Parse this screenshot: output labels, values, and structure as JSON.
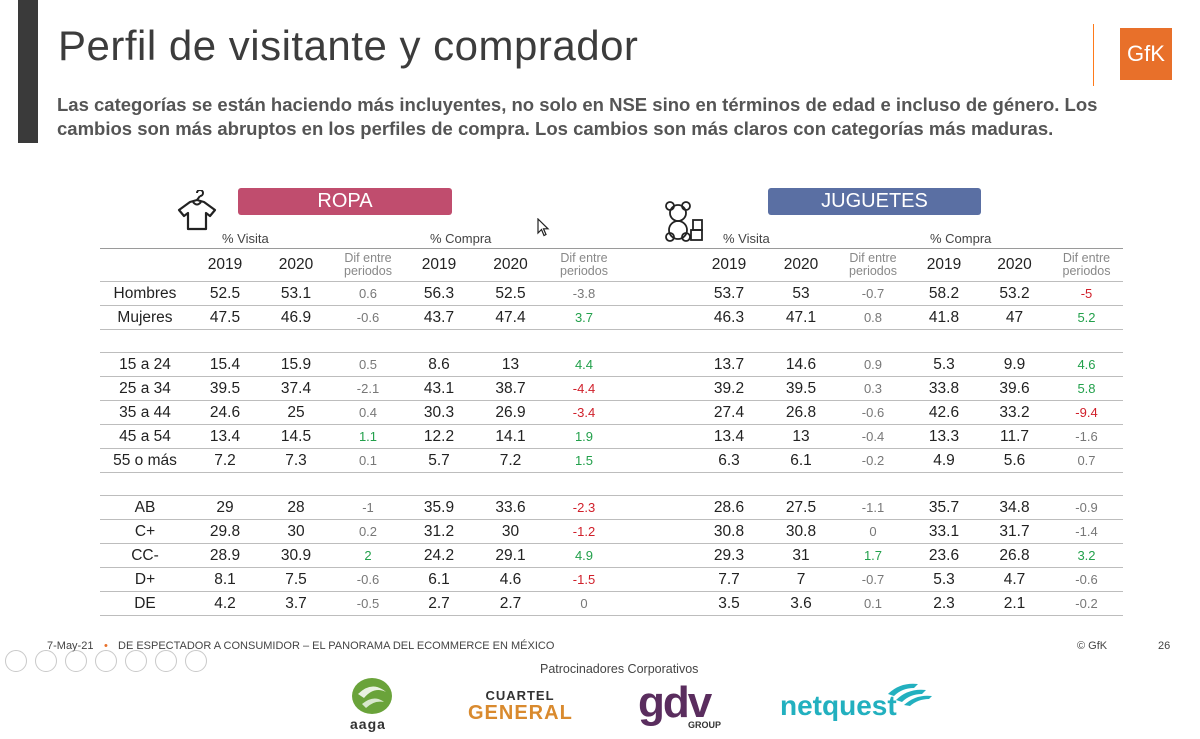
{
  "slide": {
    "title": "Perfil de visitante y comprador",
    "subtitle": "Las categorías se están haciendo más incluyentes, no solo en NSE sino en términos de edad e incluso de género. Los cambios son más abruptos en los perfiles de compra.  Los cambios son más claros con categorías más maduras.",
    "logo_text": "GfK"
  },
  "ropa": {
    "label": "ROPA",
    "icon": "shirt-hanger-icon",
    "color": "#c04d6e",
    "visita_label": "% Visita",
    "compra_label": "% Compra"
  },
  "juguetes": {
    "label": "JUGUETES",
    "icon": "teddy-bear-blocks-icon",
    "color": "#5a6fa3",
    "visita_label": "% Visita",
    "compra_label": "% Compra"
  },
  "headers": {
    "y2019": "2019",
    "y2020": "2020",
    "dif_line1": "Dif entre",
    "dif_line2": "periodos"
  },
  "colors": {
    "positive": "#22a04b",
    "negative": "#d01f2a"
  },
  "rows": [
    {
      "label": "Hombres",
      "rv19": "52.5",
      "rv20": "53.1",
      "rvd": "0.6",
      "rc19": "56.3",
      "rc20": "52.5",
      "rcd": "-3.8",
      "rcdc": "",
      "jv19": "53.7",
      "jv20": "53",
      "jvd": "-0.7",
      "jc19": "58.2",
      "jc20": "53.2",
      "jcd": "-5",
      "jcdc": "neg",
      "rvdc": "",
      "jvdc": ""
    },
    {
      "label": "Mujeres",
      "rv19": "47.5",
      "rv20": "46.9",
      "rvd": "-0.6",
      "rc19": "43.7",
      "rc20": "47.4",
      "rcd": "3.7",
      "rcdc": "pos",
      "jv19": "46.3",
      "jv20": "47.1",
      "jvd": "0.8",
      "jc19": "41.8",
      "jc20": "47",
      "jcd": "5.2",
      "jcdc": "pos",
      "rvdc": "",
      "jvdc": ""
    },
    {
      "label": "15 a 24",
      "rv19": "15.4",
      "rv20": "15.9",
      "rvd": "0.5",
      "rc19": "8.6",
      "rc20": "13",
      "rcd": "4.4",
      "rcdc": "pos",
      "jv19": "13.7",
      "jv20": "14.6",
      "jvd": "0.9",
      "jc19": "5.3",
      "jc20": "9.9",
      "jcd": "4.6",
      "jcdc": "pos",
      "rvdc": "",
      "jvdc": ""
    },
    {
      "label": "25 a 34",
      "rv19": "39.5",
      "rv20": "37.4",
      "rvd": "-2.1",
      "rc19": "43.1",
      "rc20": "38.7",
      "rcd": "-4.4",
      "rcdc": "neg",
      "jv19": "39.2",
      "jv20": "39.5",
      "jvd": "0.3",
      "jc19": "33.8",
      "jc20": "39.6",
      "jcd": "5.8",
      "jcdc": "pos",
      "rvdc": "",
      "jvdc": ""
    },
    {
      "label": "35 a 44",
      "rv19": "24.6",
      "rv20": "25",
      "rvd": "0.4",
      "rc19": "30.3",
      "rc20": "26.9",
      "rcd": "-3.4",
      "rcdc": "neg",
      "jv19": "27.4",
      "jv20": "26.8",
      "jvd": "-0.6",
      "jc19": "42.6",
      "jc20": "33.2",
      "jcd": "-9.4",
      "jcdc": "neg",
      "rvdc": "",
      "jvdc": ""
    },
    {
      "label": "45 a 54",
      "rv19": "13.4",
      "rv20": "14.5",
      "rvd": "1.1",
      "rc19": "12.2",
      "rc20": "14.1",
      "rcd": "1.9",
      "rcdc": "pos",
      "jv19": "13.4",
      "jv20": "13",
      "jvd": "-0.4",
      "jc19": "13.3",
      "jc20": "11.7",
      "jcd": "-1.6",
      "jcdc": "",
      "rvdc": "pos",
      "jvdc": ""
    },
    {
      "label": "55 o más",
      "rv19": "7.2",
      "rv20": "7.3",
      "rvd": "0.1",
      "rc19": "5.7",
      "rc20": "7.2",
      "rcd": "1.5",
      "rcdc": "pos",
      "jv19": "6.3",
      "jv20": "6.1",
      "jvd": "-0.2",
      "jc19": "4.9",
      "jc20": "5.6",
      "jcd": "0.7",
      "jcdc": "",
      "rvdc": "",
      "jvdc": ""
    },
    {
      "label": "AB",
      "rv19": "29",
      "rv20": "28",
      "rvd": "-1",
      "rc19": "35.9",
      "rc20": "33.6",
      "rcd": "-2.3",
      "rcdc": "neg",
      "jv19": "28.6",
      "jv20": "27.5",
      "jvd": "-1.1",
      "jc19": "35.7",
      "jc20": "34.8",
      "jcd": "-0.9",
      "jcdc": "",
      "rvdc": "",
      "jvdc": ""
    },
    {
      "label": "C+",
      "rv19": "29.8",
      "rv20": "30",
      "rvd": "0.2",
      "rc19": "31.2",
      "rc20": "30",
      "rcd": "-1.2",
      "rcdc": "neg",
      "jv19": "30.8",
      "jv20": "30.8",
      "jvd": "0",
      "jc19": "33.1",
      "jc20": "31.7",
      "jcd": "-1.4",
      "jcdc": "",
      "rvdc": "",
      "jvdc": ""
    },
    {
      "label": "CC-",
      "rv19": "28.9",
      "rv20": "30.9",
      "rvd": "2",
      "rc19": "24.2",
      "rc20": "29.1",
      "rcd": "4.9",
      "rcdc": "pos",
      "jv19": "29.3",
      "jv20": "31",
      "jvd": "1.7",
      "jc19": "23.6",
      "jc20": "26.8",
      "jcd": "3.2",
      "jcdc": "pos",
      "rvdc": "pos",
      "jvdc": "pos"
    },
    {
      "label": "D+",
      "rv19": "8.1",
      "rv20": "7.5",
      "rvd": "-0.6",
      "rc19": "6.1",
      "rc20": "4.6",
      "rcd": "-1.5",
      "rcdc": "neg",
      "jv19": "7.7",
      "jv20": "7",
      "jvd": "-0.7",
      "jc19": "5.3",
      "jc20": "4.7",
      "jcd": "-0.6",
      "jcdc": "",
      "rvdc": "",
      "jvdc": ""
    },
    {
      "label": "DE",
      "rv19": "4.2",
      "rv20": "3.7",
      "rvd": "-0.5",
      "rc19": "2.7",
      "rc20": "2.7",
      "rcd": "0",
      "rcdc": "",
      "jv19": "3.5",
      "jv20": "3.6",
      "jvd": "0.1",
      "jc19": "2.3",
      "jc20": "2.1",
      "jcd": "-0.2",
      "jcdc": "",
      "rvdc": "",
      "jvdc": ""
    }
  ],
  "footer": {
    "date": "7-May-21",
    "bullet": "•",
    "caption": "DE ESPECTADOR A CONSUMIDOR – EL PANORAMA DEL ECOMMERCE EN MÉXICO",
    "copyright": "© GfK",
    "page": "26"
  },
  "sponsors": {
    "title": "Patrocinadores Corporativos",
    "aaga": "aaga",
    "cuartel_a": "CUARTEL",
    "cuartel_b": "GENERAL",
    "gdv": "gdv",
    "gdv_sub": "GROUP",
    "netquest": "netquest"
  }
}
